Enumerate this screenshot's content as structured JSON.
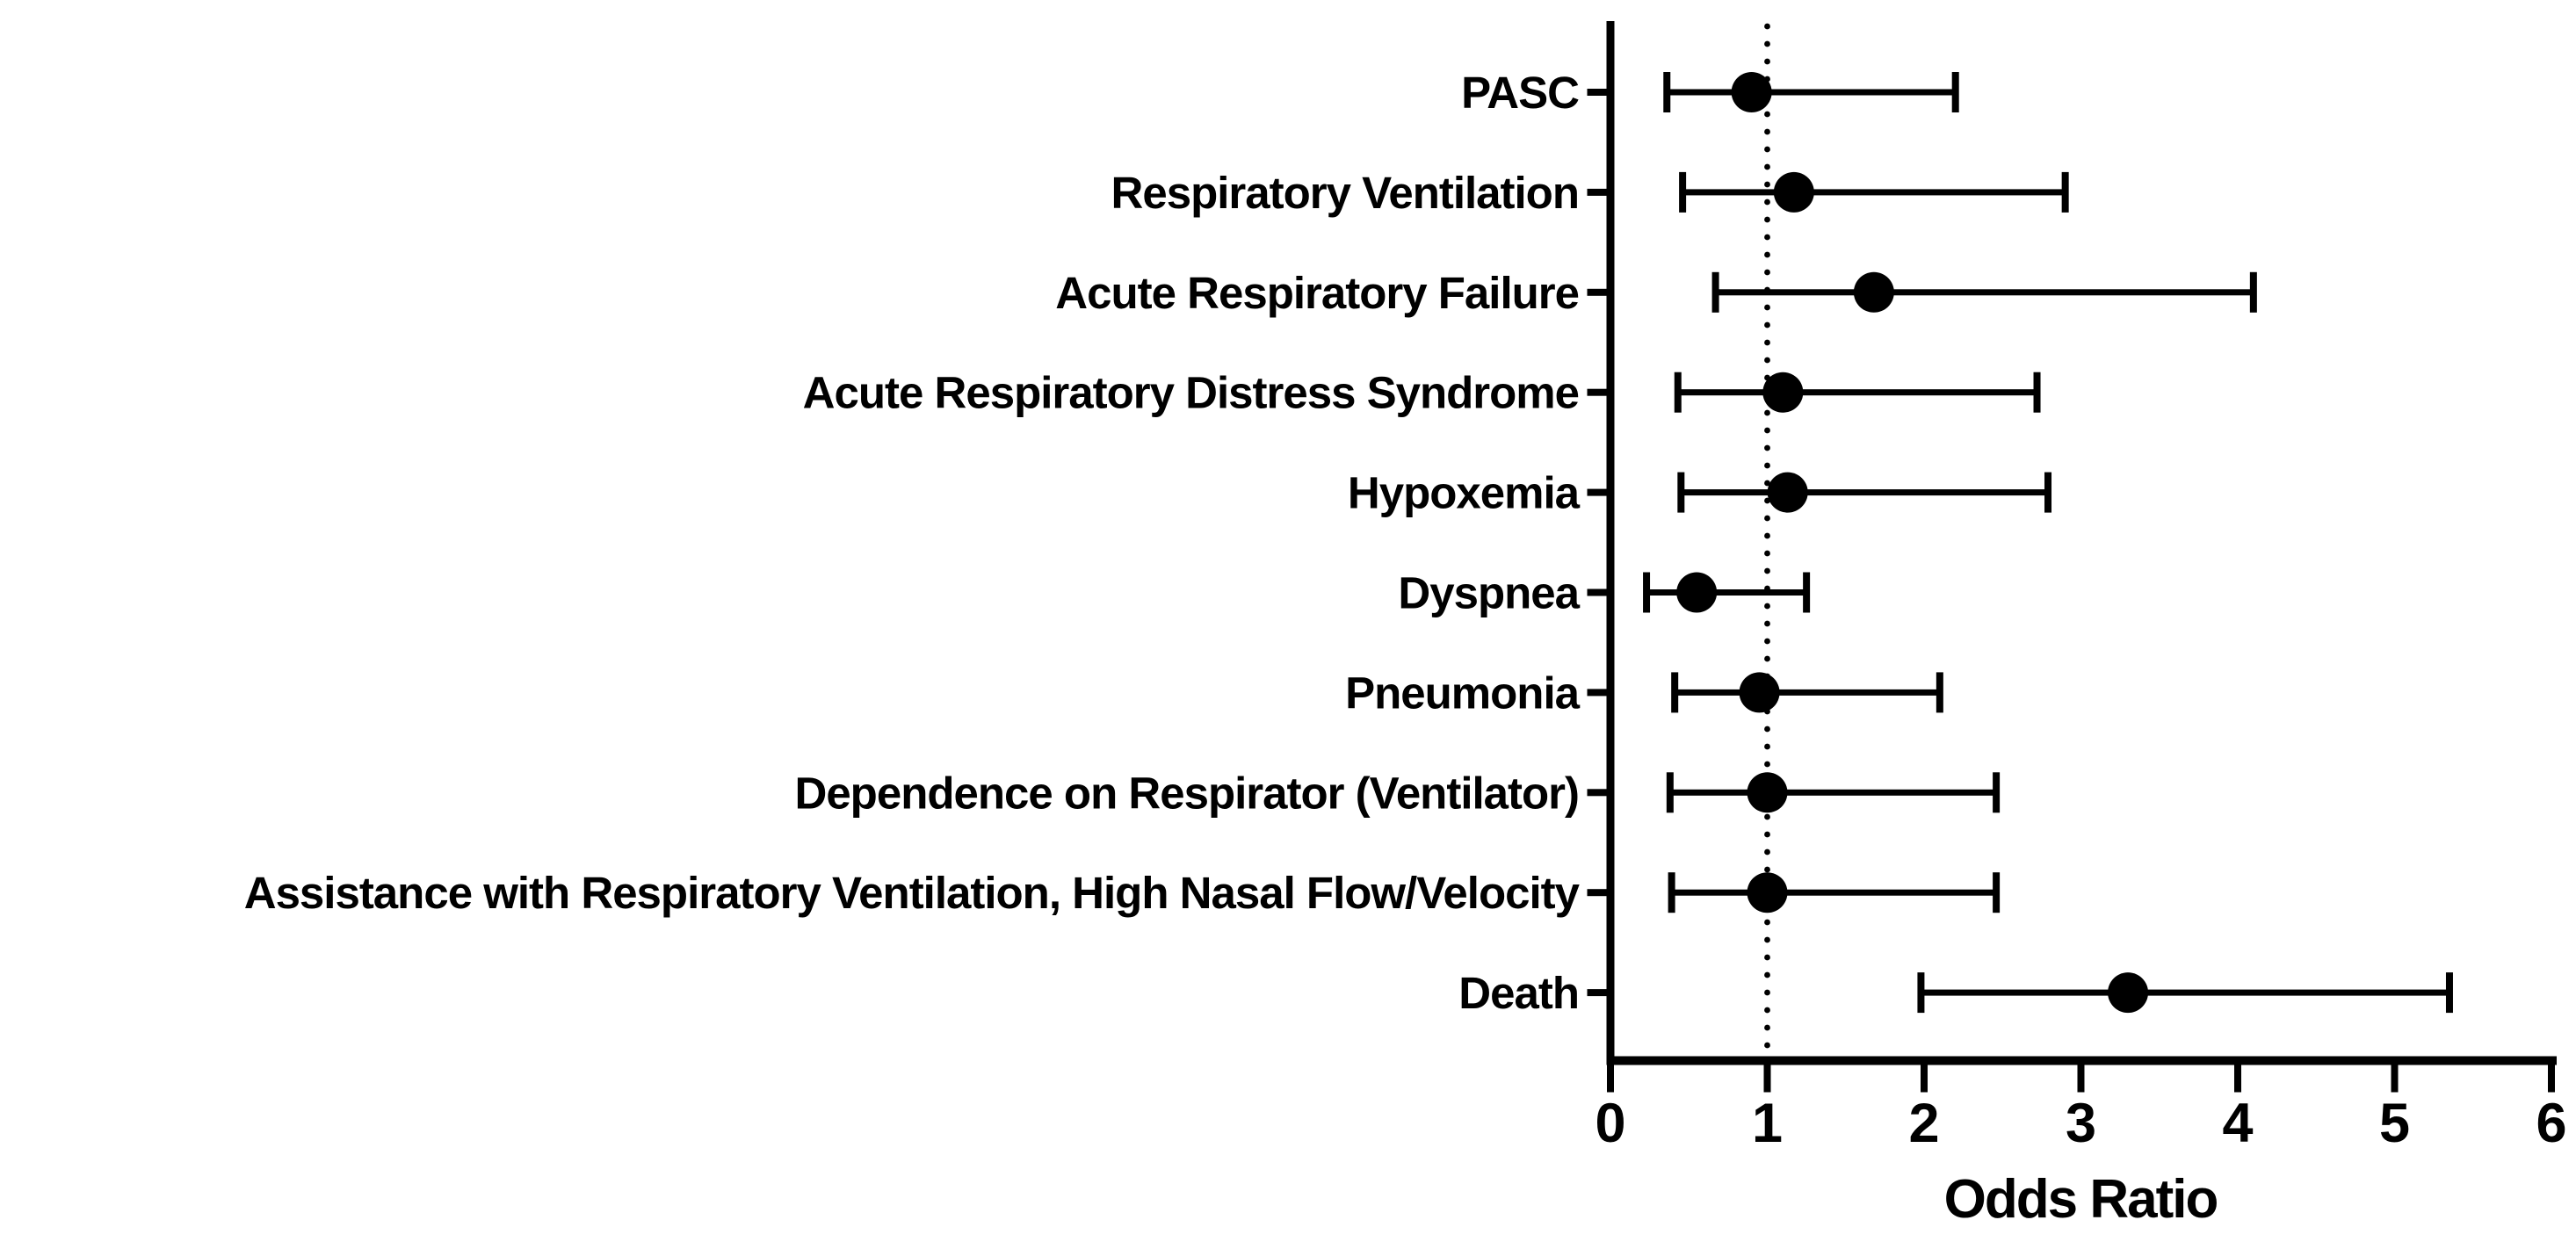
{
  "page": {
    "background": "#ffffff"
  },
  "chart_data": {
    "type": "scatter",
    "variant": "forest-plot",
    "title": "",
    "xlabel": "Odds Ratio",
    "ylabel": "",
    "xlim": [
      0,
      6
    ],
    "xticks": [
      0,
      1,
      2,
      3,
      4,
      5,
      6
    ],
    "xtick_labels": [
      "0",
      "1",
      "2",
      "3",
      "4",
      "5",
      "6"
    ],
    "grid": false,
    "legend_position": "none",
    "reference_line": {
      "x": 1,
      "style": "dotted",
      "color": "#000000"
    },
    "colors": {
      "marker": "#000000",
      "error_bar": "#000000",
      "axis": "#000000",
      "text": "#000000",
      "background": "#ffffff"
    },
    "categories": [
      "PASC",
      "Respiratory Ventilation",
      "Acute Respiratory Failure",
      "Acute Respiratory Distress Syndrome",
      "Hypoxemia",
      "Dyspnea",
      "Pneumonia",
      "Dependence on Respirator (Ventilator)",
      "Assistance with Respiratory Ventilation, High Nasal Flow/Velocity",
      "Death"
    ],
    "series": [
      {
        "name": "Odds Ratio (95% CI)",
        "points": [
          {
            "label": "PASC",
            "or": 0.9,
            "ci_low": 0.36,
            "ci_high": 2.2
          },
          {
            "label": "Respiratory Ventilation",
            "or": 1.17,
            "ci_low": 0.46,
            "ci_high": 2.9
          },
          {
            "label": "Acute Respiratory Failure",
            "or": 1.68,
            "ci_low": 0.67,
            "ci_high": 4.1
          },
          {
            "label": "Acute Respiratory Distress Syndrome",
            "or": 1.1,
            "ci_low": 0.43,
            "ci_high": 2.72
          },
          {
            "label": "Hypoxemia",
            "or": 1.13,
            "ci_low": 0.45,
            "ci_high": 2.79
          },
          {
            "label": "Dyspnea",
            "or": 0.55,
            "ci_low": 0.23,
            "ci_high": 1.25
          },
          {
            "label": "Pneumonia",
            "or": 0.95,
            "ci_low": 0.41,
            "ci_high": 2.1
          },
          {
            "label": "Dependence on Respirator (Ventilator)",
            "or": 1.0,
            "ci_low": 0.38,
            "ci_high": 2.46
          },
          {
            "label": "Assistance with Respiratory Ventilation, High Nasal Flow/Velocity",
            "or": 1.0,
            "ci_low": 0.39,
            "ci_high": 2.46
          },
          {
            "label": "Death",
            "or": 3.3,
            "ci_low": 1.98,
            "ci_high": 5.35
          }
        ]
      }
    ]
  }
}
